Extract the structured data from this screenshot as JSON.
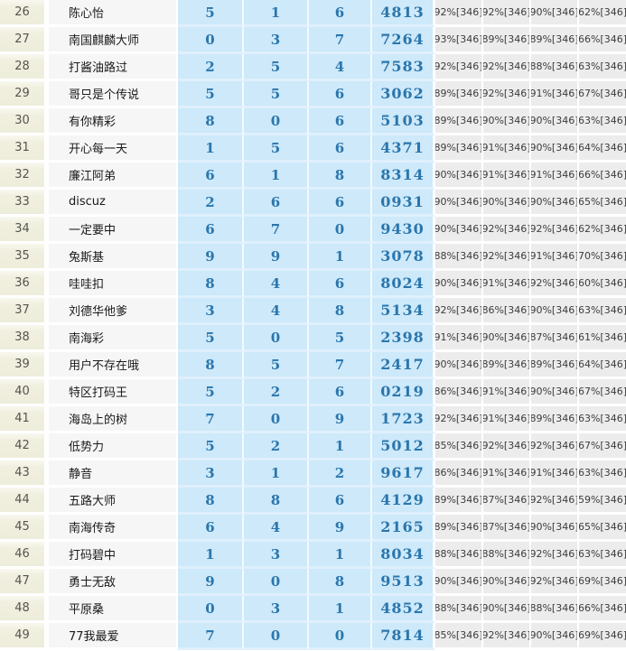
{
  "colors": {
    "rank_bg": "#efeedc",
    "name_bg": "#f6f6f6",
    "blue_cell_bg": "#cde9fa",
    "blue_row_divider": "#dff0fc",
    "blue_text": "#2b76ac",
    "pct_bg": "#ececec",
    "pct_text": "#3c3c3c",
    "divider": "#ffffff"
  },
  "table": {
    "pct_suffix": "[346]",
    "rows": [
      {
        "rank": "26",
        "name": "陈心怡",
        "v1": "5",
        "v2": "1",
        "v3": "6",
        "code": "4813",
        "p1": "92%[346]",
        "p2": "92%[346]",
        "p3": "90%[346]",
        "p4": "62%[346]"
      },
      {
        "rank": "27",
        "name": "南国麒麟大师",
        "v1": "0",
        "v2": "3",
        "v3": "7",
        "code": "7264",
        "p1": "93%[346]",
        "p2": "89%[346]",
        "p3": "89%[346]",
        "p4": "66%[346]"
      },
      {
        "rank": "28",
        "name": "打酱油路过",
        "v1": "2",
        "v2": "5",
        "v3": "4",
        "code": "7583",
        "p1": "92%[346]",
        "p2": "92%[346]",
        "p3": "88%[346]",
        "p4": "63%[346]"
      },
      {
        "rank": "29",
        "name": "哥只是个传说",
        "v1": "5",
        "v2": "5",
        "v3": "6",
        "code": "3062",
        "p1": "89%[346]",
        "p2": "92%[346]",
        "p3": "91%[346]",
        "p4": "67%[346]"
      },
      {
        "rank": "30",
        "name": "有你精彩",
        "v1": "8",
        "v2": "0",
        "v3": "6",
        "code": "5103",
        "p1": "89%[346]",
        "p2": "90%[346]",
        "p3": "90%[346]",
        "p4": "63%[346]"
      },
      {
        "rank": "31",
        "name": "开心每一天",
        "v1": "1",
        "v2": "5",
        "v3": "6",
        "code": "4371",
        "p1": "89%[346]",
        "p2": "91%[346]",
        "p3": "90%[346]",
        "p4": "64%[346]"
      },
      {
        "rank": "32",
        "name": "廉江阿弟",
        "v1": "6",
        "v2": "1",
        "v3": "8",
        "code": "8314",
        "p1": "90%[346]",
        "p2": "91%[346]",
        "p3": "91%[346]",
        "p4": "66%[346]"
      },
      {
        "rank": "33",
        "name": "discuz",
        "v1": "2",
        "v2": "6",
        "v3": "6",
        "code": "0931",
        "p1": "90%[346]",
        "p2": "90%[346]",
        "p3": "90%[346]",
        "p4": "65%[346]"
      },
      {
        "rank": "34",
        "name": "一定要中",
        "v1": "6",
        "v2": "7",
        "v3": "0",
        "code": "9430",
        "p1": "90%[346]",
        "p2": "92%[346]",
        "p3": "92%[346]",
        "p4": "62%[346]"
      },
      {
        "rank": "35",
        "name": "兔斯基",
        "v1": "9",
        "v2": "9",
        "v3": "1",
        "code": "3078",
        "p1": "88%[346]",
        "p2": "92%[346]",
        "p3": "91%[346]",
        "p4": "70%[346]"
      },
      {
        "rank": "36",
        "name": "哇哇扣",
        "v1": "8",
        "v2": "4",
        "v3": "6",
        "code": "8024",
        "p1": "90%[346]",
        "p2": "91%[346]",
        "p3": "92%[346]",
        "p4": "60%[346]"
      },
      {
        "rank": "37",
        "name": "刘德华他爹",
        "v1": "3",
        "v2": "4",
        "v3": "8",
        "code": "5134",
        "p1": "92%[346]",
        "p2": "86%[346]",
        "p3": "90%[346]",
        "p4": "63%[346]"
      },
      {
        "rank": "38",
        "name": "南海彩",
        "v1": "5",
        "v2": "0",
        "v3": "5",
        "code": "2398",
        "p1": "91%[346]",
        "p2": "90%[346]",
        "p3": "87%[346]",
        "p4": "61%[346]"
      },
      {
        "rank": "39",
        "name": "用户不存在哦",
        "v1": "8",
        "v2": "5",
        "v3": "7",
        "code": "2417",
        "p1": "90%[346]",
        "p2": "89%[346]",
        "p3": "89%[346]",
        "p4": "64%[346]"
      },
      {
        "rank": "40",
        "name": "特区打码王",
        "v1": "5",
        "v2": "2",
        "v3": "6",
        "code": "0219",
        "p1": "86%[346]",
        "p2": "91%[346]",
        "p3": "90%[346]",
        "p4": "67%[346]"
      },
      {
        "rank": "41",
        "name": "海岛上的树",
        "v1": "7",
        "v2": "0",
        "v3": "9",
        "code": "1723",
        "p1": "92%[346]",
        "p2": "91%[346]",
        "p3": "89%[346]",
        "p4": "63%[346]"
      },
      {
        "rank": "42",
        "name": "低势力",
        "v1": "5",
        "v2": "2",
        "v3": "1",
        "code": "5012",
        "p1": "85%[346]",
        "p2": "92%[346]",
        "p3": "92%[346]",
        "p4": "67%[346]"
      },
      {
        "rank": "43",
        "name": "静音",
        "v1": "3",
        "v2": "1",
        "v3": "2",
        "code": "9617",
        "p1": "86%[346]",
        "p2": "91%[346]",
        "p3": "91%[346]",
        "p4": "63%[346]"
      },
      {
        "rank": "44",
        "name": "五路大师",
        "v1": "8",
        "v2": "8",
        "v3": "6",
        "code": "4129",
        "p1": "89%[346]",
        "p2": "87%[346]",
        "p3": "92%[346]",
        "p4": "59%[346]"
      },
      {
        "rank": "45",
        "name": "南海传奇",
        "v1": "6",
        "v2": "4",
        "v3": "9",
        "code": "2165",
        "p1": "89%[346]",
        "p2": "87%[346]",
        "p3": "90%[346]",
        "p4": "65%[346]"
      },
      {
        "rank": "46",
        "name": "打码碧中",
        "v1": "1",
        "v2": "3",
        "v3": "1",
        "code": "8034",
        "p1": "88%[346]",
        "p2": "88%[346]",
        "p3": "92%[346]",
        "p4": "63%[346]"
      },
      {
        "rank": "47",
        "name": "勇士无敌",
        "v1": "9",
        "v2": "0",
        "v3": "8",
        "code": "9513",
        "p1": "90%[346]",
        "p2": "90%[346]",
        "p3": "92%[346]",
        "p4": "69%[346]"
      },
      {
        "rank": "48",
        "name": "平原桑",
        "v1": "0",
        "v2": "3",
        "v3": "1",
        "code": "4852",
        "p1": "88%[346]",
        "p2": "90%[346]",
        "p3": "88%[346]",
        "p4": "66%[346]"
      },
      {
        "rank": "49",
        "name": "77我最爱",
        "v1": "7",
        "v2": "0",
        "v3": "0",
        "code": "7814",
        "p1": "85%[346]",
        "p2": "92%[346]",
        "p3": "90%[346]",
        "p4": "69%[346]"
      }
    ]
  }
}
